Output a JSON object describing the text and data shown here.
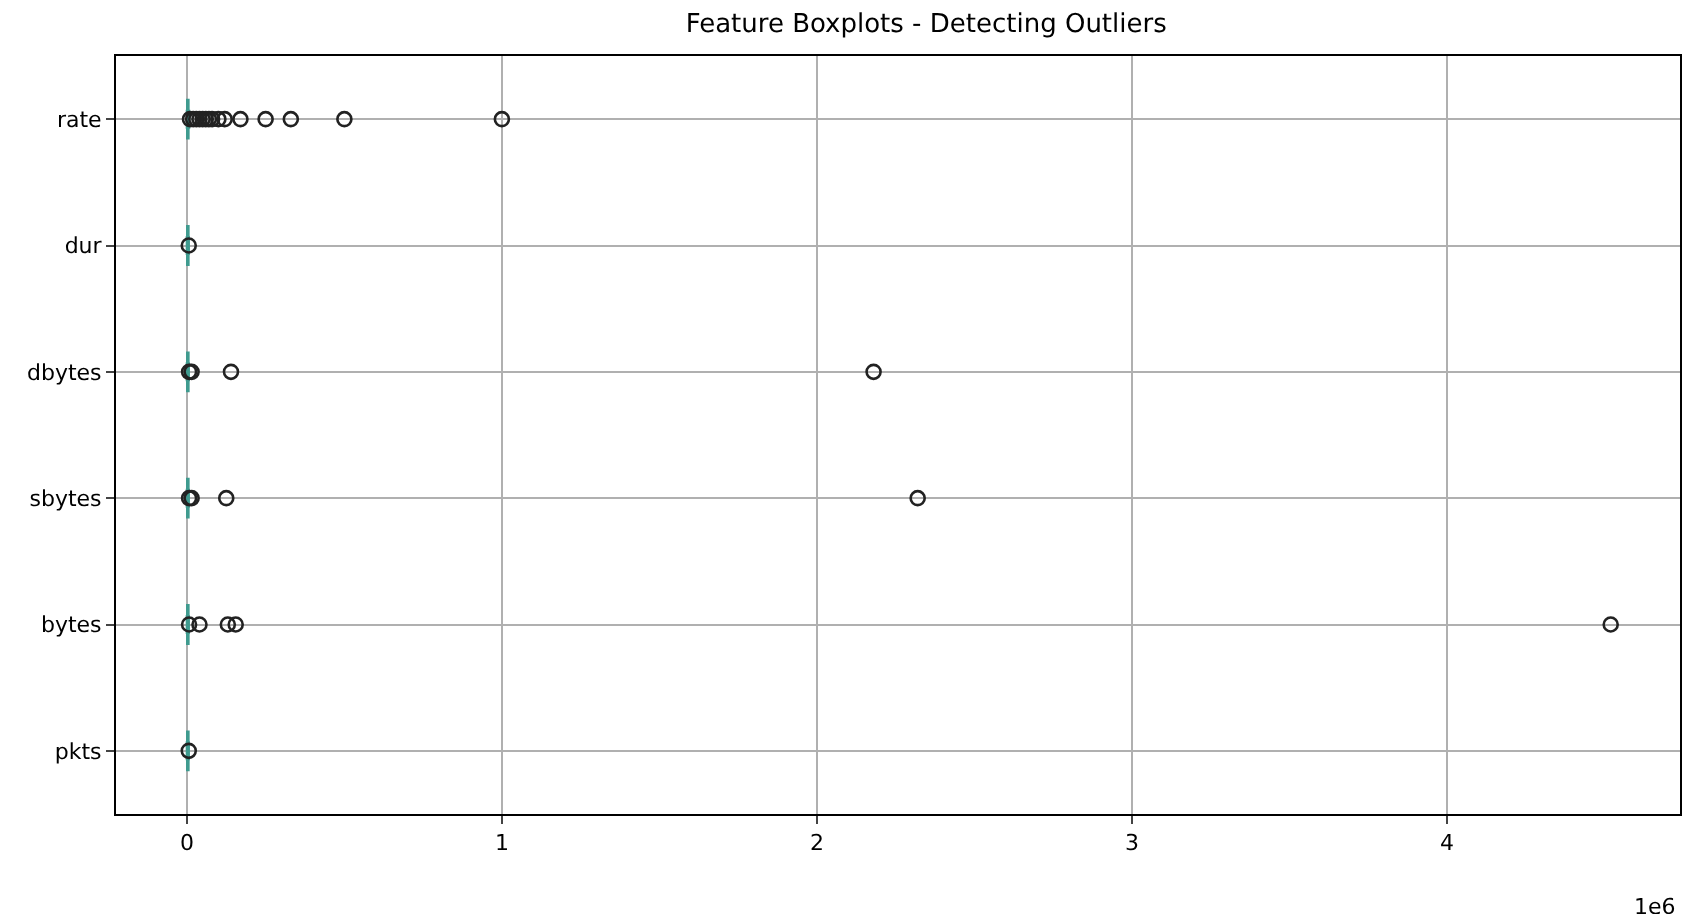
{
  "chart_data": {
    "type": "box",
    "title": "Feature Boxplots - Detecting Outliers",
    "orientation": "horizontal",
    "categories": [
      "rate",
      "dur",
      "dbytes",
      "sbytes",
      "bytes",
      "pkts"
    ],
    "color": "#3f9b8f",
    "marker": "circle",
    "grid": true,
    "boxes": [
      {
        "low": 0.001,
        "q1": 0.002,
        "median": 0.003,
        "q3": 0.004,
        "high": 0.006,
        "outliers": [
          0.01,
          0.02,
          0.03,
          0.04,
          0.05,
          0.06,
          0.07,
          0.08,
          0.1,
          0.12,
          0.17,
          0.25,
          0.33,
          0.5,
          1.0
        ]
      },
      {
        "low": 0.001,
        "q1": 0.002,
        "median": 0.003,
        "q3": 0.004,
        "high": 0.005,
        "outliers": [
          0.006
        ]
      },
      {
        "low": 0.001,
        "q1": 0.002,
        "median": 0.003,
        "q3": 0.004,
        "high": 0.005,
        "outliers": [
          0.007,
          0.015,
          0.14,
          2.18
        ]
      },
      {
        "low": 0.001,
        "q1": 0.002,
        "median": 0.003,
        "q3": 0.004,
        "high": 0.005,
        "outliers": [
          0.007,
          0.015,
          0.125,
          2.32
        ]
      },
      {
        "low": 0.001,
        "q1": 0.002,
        "median": 0.003,
        "q3": 0.004,
        "high": 0.005,
        "outliers": [
          0.007,
          0.04,
          0.13,
          0.155,
          4.52
        ]
      },
      {
        "low": 0.001,
        "q1": 0.002,
        "median": 0.003,
        "q3": 0.004,
        "high": 0.005,
        "outliers": [
          0.006
        ]
      }
    ],
    "xlim": [
      -0.225,
      4.74
    ],
    "xticks": [
      0,
      1,
      2,
      3,
      4
    ],
    "annotations": [
      "1e6"
    ]
  }
}
